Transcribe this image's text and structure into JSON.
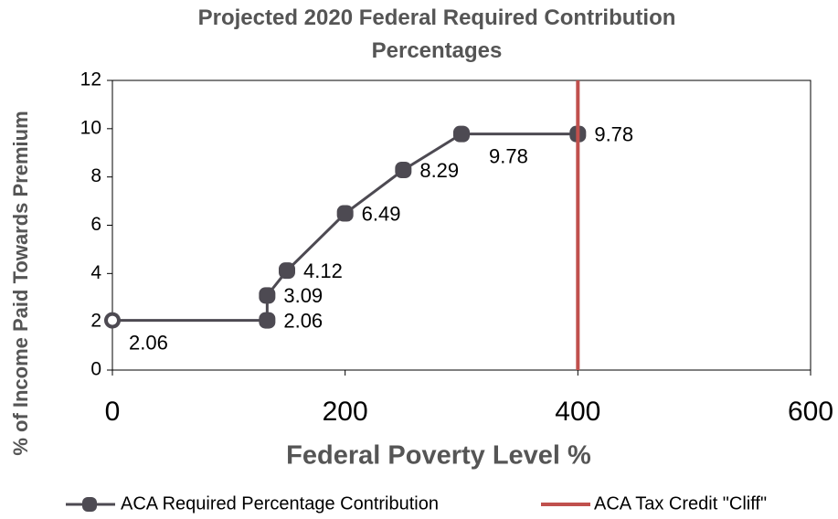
{
  "chart_data": {
    "type": "line",
    "title": "Projected 2020 Federal Required Contribution Percentages",
    "x_label": "Federal Poverty Level %",
    "y_label": "% of Income Paid Towards Premium",
    "xlim": [
      0,
      600
    ],
    "xticks": [
      0,
      200,
      400,
      600
    ],
    "ylim": [
      0,
      12
    ],
    "yticks": [
      0,
      2,
      4,
      6,
      8,
      10,
      12
    ],
    "grid": false,
    "legend": "bottom",
    "series": [
      {
        "name": "ACA Required Percentage Contribution",
        "color": "#4d4a52",
        "x": [
          0,
          133,
          133,
          150,
          200,
          250,
          300,
          400
        ],
        "values": [
          2.06,
          2.06,
          3.09,
          4.12,
          6.49,
          8.29,
          9.78,
          9.78
        ]
      },
      {
        "name": "ACA Tax Credit \"Cliff\"",
        "color": "#c0504d",
        "x": [
          400,
          400
        ],
        "values": [
          0,
          12
        ]
      }
    ]
  }
}
